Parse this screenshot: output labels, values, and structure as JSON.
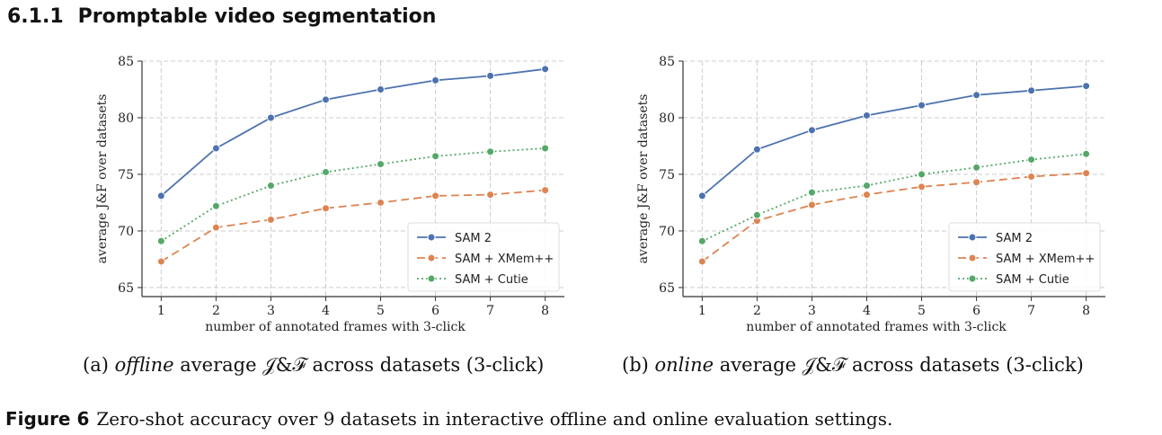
{
  "section": {
    "number": "6.1.1",
    "title": "Promptable video segmentation"
  },
  "colors": {
    "sam2": "#4c72b0",
    "xmem": "#dd8452",
    "cutie": "#55a868",
    "grid": "#cccccc",
    "axis": "#333333"
  },
  "captions": {
    "a_prefix": "(a) ",
    "a_em": "offline",
    "a_rest": " average 𝒥&ℱ across datasets (3-click)",
    "b_prefix": "(b) ",
    "b_em": "online",
    "b_rest": " average 𝒥&ℱ across datasets (3-click)"
  },
  "figure_caption": {
    "label": "Figure 6",
    "text": "Zero-shot accuracy over 9 datasets in interactive offline and online evaluation settings."
  },
  "chart_data": [
    {
      "type": "line",
      "xlabel": "number of annotated frames with 3-click",
      "ylabel": "average J&F over datasets",
      "x": [
        1,
        2,
        3,
        4,
        5,
        6,
        7,
        8
      ],
      "ylim": [
        64.2,
        85
      ],
      "yticks": [
        65,
        70,
        75,
        80,
        85
      ],
      "grid": true,
      "legend": "lower-right",
      "series": [
        {
          "name": "SAM 2",
          "style": "solid",
          "color": "#4c72b0",
          "values": [
            73.1,
            77.3,
            80.0,
            81.6,
            82.5,
            83.3,
            83.7,
            84.3
          ]
        },
        {
          "name": "SAM + XMem++",
          "style": "dashed",
          "color": "#dd8452",
          "values": [
            67.3,
            70.3,
            71.0,
            72.0,
            72.5,
            73.1,
            73.2,
            73.6
          ]
        },
        {
          "name": "SAM + Cutie",
          "style": "dotted",
          "color": "#55a868",
          "values": [
            69.1,
            72.2,
            74.0,
            75.2,
            75.9,
            76.6,
            77.0,
            77.3
          ]
        }
      ]
    },
    {
      "type": "line",
      "xlabel": "number of annotated frames with 3-click",
      "ylabel": "average J&F over datasets",
      "x": [
        1,
        2,
        3,
        4,
        5,
        6,
        7,
        8
      ],
      "ylim": [
        64.2,
        85
      ],
      "yticks": [
        65,
        70,
        75,
        80,
        85
      ],
      "grid": true,
      "legend": "lower-right",
      "series": [
        {
          "name": "SAM 2",
          "style": "solid",
          "color": "#4c72b0",
          "values": [
            73.1,
            77.2,
            78.9,
            80.2,
            81.1,
            82.0,
            82.4,
            82.8
          ]
        },
        {
          "name": "SAM + XMem++",
          "style": "dashed",
          "color": "#dd8452",
          "values": [
            67.3,
            70.9,
            72.3,
            73.2,
            73.9,
            74.3,
            74.8,
            75.1
          ]
        },
        {
          "name": "SAM + Cutie",
          "style": "dotted",
          "color": "#55a868",
          "values": [
            69.1,
            71.4,
            73.4,
            74.0,
            75.0,
            75.6,
            76.3,
            76.8
          ]
        }
      ]
    }
  ]
}
